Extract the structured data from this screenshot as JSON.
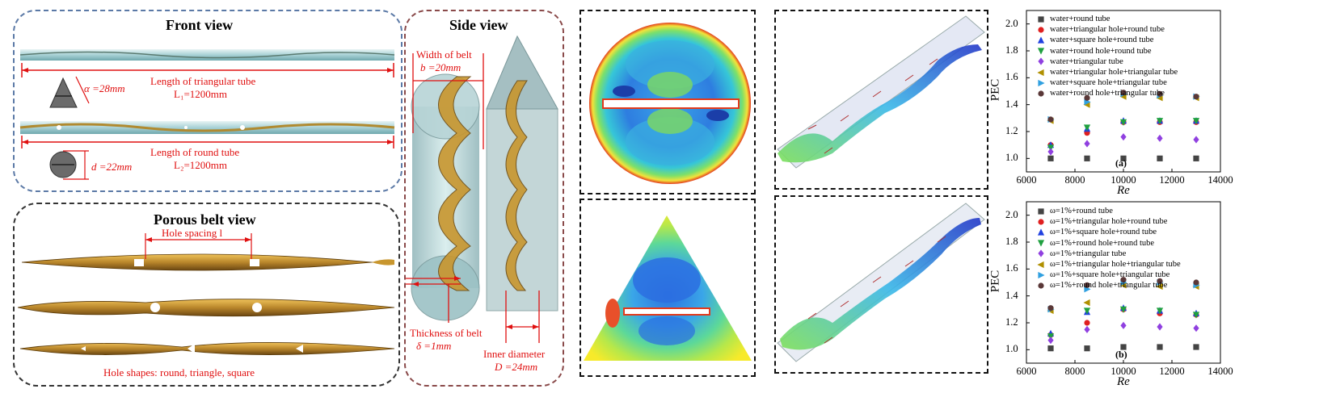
{
  "front": {
    "title": "Front view",
    "alpha": "α =28mm",
    "tri_len": "Length of triangular tube",
    "tri_L": "L₁=1200mm",
    "round_len": "Length of round tube",
    "d": "d =22mm",
    "round_L": "L₂=1200mm"
  },
  "porous": {
    "title": "Porous belt view",
    "hole_spacing": "Hole spacing l",
    "hole_shapes": "Hole shapes: round, triangle, square"
  },
  "side": {
    "title": "Side view",
    "width_label": "Width of belt",
    "width_value": "b =20mm",
    "thickness_label": "Thickness of belt",
    "thickness_value": "δ =1mm",
    "inner_label": "Inner diameter",
    "inner_value": "D =24mm"
  },
  "colors": {
    "red": "#e01010",
    "belt": "#c8962e"
  },
  "chart_data": [
    {
      "type": "scatter",
      "panel_label": "(a)",
      "xlabel": "Re",
      "ylabel": "PEC",
      "xlim": [
        6000,
        14000
      ],
      "ylim": [
        0.9,
        2.1
      ],
      "xticks": [
        6000,
        8000,
        10000,
        12000,
        14000
      ],
      "yticks": [
        1.0,
        1.2,
        1.4,
        1.6,
        1.8,
        2.0
      ],
      "x": [
        7000,
        8500,
        10000,
        11500,
        13000
      ],
      "series": [
        {
          "name": "water+round tube",
          "marker": "square",
          "color": "#444444",
          "values": [
            1.0,
            1.0,
            1.0,
            1.0,
            1.0
          ]
        },
        {
          "name": "water+triangular hole+round tube",
          "marker": "circle",
          "color": "#e02020",
          "values": [
            1.1,
            1.19,
            1.27,
            1.27,
            1.27
          ]
        },
        {
          "name": "water+square hole+round tube",
          "marker": "triangle-up",
          "color": "#2040e0",
          "values": [
            1.1,
            1.22,
            1.28,
            1.28,
            1.28
          ]
        },
        {
          "name": "water+round hole+round tube",
          "marker": "triangle-down",
          "color": "#20a040",
          "values": [
            1.08,
            1.23,
            1.27,
            1.28,
            1.28
          ]
        },
        {
          "name": "water+triangular tube",
          "marker": "diamond",
          "color": "#9040e0",
          "values": [
            1.05,
            1.11,
            1.16,
            1.15,
            1.14
          ]
        },
        {
          "name": "water+triangular hole+triangular tube",
          "marker": "triangle-left",
          "color": "#b09000",
          "values": [
            1.28,
            1.4,
            1.46,
            1.45,
            1.45
          ]
        },
        {
          "name": "water+square hole+triangular tube",
          "marker": "triangle-right",
          "color": "#30a0e0",
          "values": [
            1.29,
            1.42,
            1.48,
            1.47,
            1.46
          ]
        },
        {
          "name": "water+round hole+triangular tube",
          "marker": "circle",
          "color": "#5a3838",
          "values": [
            1.29,
            1.45,
            1.49,
            1.48,
            1.46
          ]
        }
      ]
    },
    {
      "type": "scatter",
      "panel_label": "(b)",
      "xlabel": "Re",
      "ylabel": "PEC",
      "xlim": [
        6000,
        14000
      ],
      "ylim": [
        0.9,
        2.1
      ],
      "xticks": [
        6000,
        8000,
        10000,
        12000,
        14000
      ],
      "yticks": [
        1.0,
        1.2,
        1.4,
        1.6,
        1.8,
        2.0
      ],
      "x": [
        7000,
        8500,
        10000,
        11500,
        13000
      ],
      "series": [
        {
          "name": "ω=1%+round tube",
          "marker": "square",
          "color": "#444444",
          "values": [
            1.01,
            1.01,
            1.02,
            1.02,
            1.02
          ]
        },
        {
          "name": "ω=1%+triangular hole+round tube",
          "marker": "circle",
          "color": "#e02020",
          "values": [
            1.11,
            1.2,
            1.3,
            1.27,
            1.26
          ]
        },
        {
          "name": "ω=1%+square hole+round tube",
          "marker": "triangle-up",
          "color": "#2040e0",
          "values": [
            1.12,
            1.28,
            1.31,
            1.29,
            1.27
          ]
        },
        {
          "name": "ω=1%+round hole+round tube",
          "marker": "triangle-down",
          "color": "#20a040",
          "values": [
            1.1,
            1.29,
            1.3,
            1.29,
            1.26
          ]
        },
        {
          "name": "ω=1%+triangular tube",
          "marker": "diamond",
          "color": "#9040e0",
          "values": [
            1.07,
            1.15,
            1.18,
            1.17,
            1.16
          ]
        },
        {
          "name": "ω=1%+triangular hole+triangular tube",
          "marker": "triangle-left",
          "color": "#b09000",
          "values": [
            1.29,
            1.35,
            1.48,
            1.47,
            1.47
          ]
        },
        {
          "name": "ω=1%+square hole+triangular tube",
          "marker": "triangle-right",
          "color": "#30a0e0",
          "values": [
            1.3,
            1.45,
            1.5,
            1.5,
            1.48
          ]
        },
        {
          "name": "ω=1%+round hole+triangular tube",
          "marker": "circle",
          "color": "#5a3838",
          "values": [
            1.31,
            1.48,
            1.52,
            1.51,
            1.5
          ]
        }
      ]
    }
  ]
}
